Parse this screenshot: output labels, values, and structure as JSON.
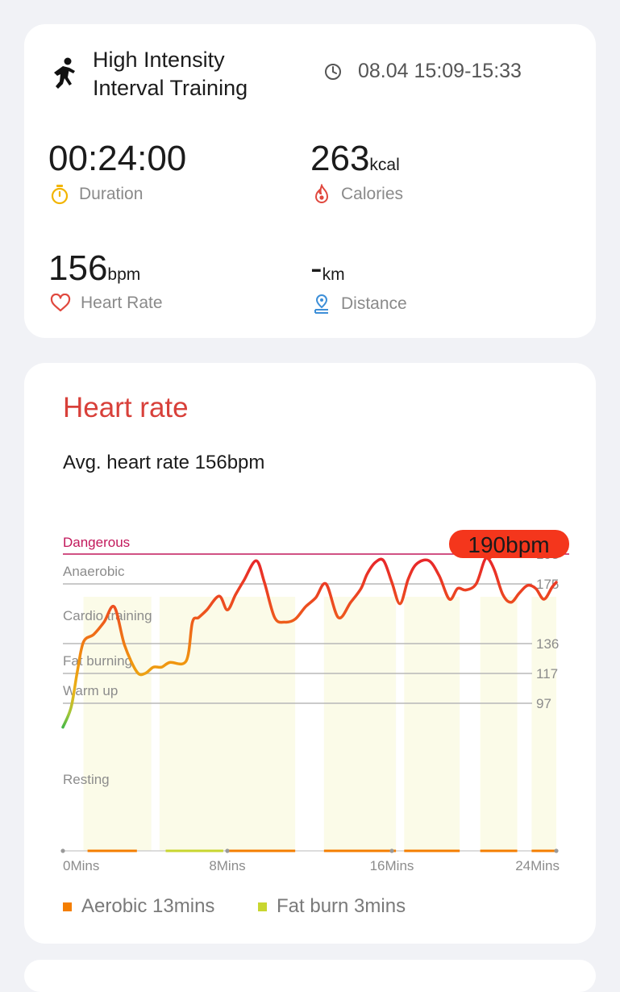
{
  "workout": {
    "title_line1": "High Intensity",
    "title_line2": "Interval Training",
    "time_range": "08.04 15:09-15:33"
  },
  "stats": {
    "duration": {
      "value": "00:24:00",
      "label": "Duration"
    },
    "calories": {
      "value": "263",
      "unit": "kcal",
      "label": "Calories"
    },
    "heart_rate": {
      "value": "156",
      "unit": "bpm",
      "label": "Heart Rate"
    },
    "distance": {
      "value": "-",
      "unit": "km",
      "label": "Distance"
    }
  },
  "icons": {
    "workout": "running-person-icon",
    "time": "clock-icon",
    "duration": "stopwatch-icon",
    "calories": "flame-icon",
    "heart_rate": "heart-icon",
    "distance": "location-pin-icon"
  },
  "colors": {
    "heart_title": "#d8403a",
    "dangerous": "#c2185b",
    "peak_badge": "#f4361c",
    "aerobic": "#f47e00",
    "fat_burn": "#c8d630",
    "zone_band": "#fbfbe8"
  },
  "heart_section": {
    "title": "Heart rate",
    "avg_text": "Avg. heart rate 156bpm",
    "peak_label": "190bpm",
    "legend": [
      {
        "label": "Aerobic 13mins",
        "color": "#f47e00"
      },
      {
        "label": "Fat burn 3mins",
        "color": "#c8d630"
      }
    ]
  },
  "chart_data": {
    "type": "line",
    "x_unit": "mins",
    "x_ticks": [
      "0Mins",
      "8Mins",
      "16Mins",
      "24Mins"
    ],
    "xlim": [
      0,
      24
    ],
    "zones": [
      {
        "name": "Dangerous",
        "threshold": 193
      },
      {
        "name": "Anaerobic",
        "threshold": 175
      },
      {
        "name": "Cardio training",
        "threshold": 136
      },
      {
        "name": "Fat burning",
        "threshold": 117
      },
      {
        "name": "Warm up",
        "threshold": 97
      },
      {
        "name": "Resting",
        "threshold": null
      }
    ],
    "y_ticks": [
      193,
      175,
      136,
      117,
      97
    ],
    "peak": {
      "x": 20.7,
      "y": 190,
      "label": "190bpm"
    },
    "series": [
      {
        "x": [
          0.0,
          0.4,
          0.7,
          1.0,
          1.5,
          2.0,
          2.5,
          3.0,
          3.6,
          4.0,
          4.4,
          4.8,
          5.2,
          6.0,
          6.3,
          6.6,
          7.0,
          7.6,
          8.0,
          8.4,
          8.8,
          9.4,
          9.8,
          10.3,
          10.8,
          11.3,
          11.8,
          12.3,
          12.8,
          13.4,
          14.0,
          14.5,
          14.8,
          15.2,
          15.6,
          16.0,
          16.4,
          16.8,
          17.2,
          17.8,
          18.3,
          18.8,
          19.2,
          19.6,
          20.1,
          20.5,
          20.7,
          21.0,
          21.4,
          21.8,
          22.2,
          22.6,
          23.0,
          23.4,
          23.8,
          24.0
        ],
        "y": [
          91,
          96,
          118,
          137,
          142,
          150,
          160,
          135,
          118,
          117,
          121,
          121,
          124,
          125,
          150,
          153,
          158,
          167,
          158,
          168,
          177,
          189,
          176,
          153,
          150,
          152,
          160,
          166,
          175,
          153,
          163,
          172,
          181,
          188,
          189,
          176,
          162,
          178,
          187,
          189,
          180,
          165,
          172,
          171,
          175,
          189,
          190,
          183,
          168,
          163,
          169,
          174,
          172,
          165,
          173,
          176
        ]
      }
    ],
    "zone_bands_mins": [
      [
        1,
        4.3
      ],
      [
        4.7,
        11.3
      ],
      [
        12.7,
        16.2
      ],
      [
        16.6,
        19.3
      ],
      [
        20.3,
        22.1
      ],
      [
        22.8,
        24.0
      ]
    ],
    "bottom_segments": [
      {
        "range": [
          1.2,
          3.6
        ],
        "zone": "Aerobic"
      },
      {
        "range": [
          5.0,
          7.8
        ],
        "zone": "Fat burn"
      },
      {
        "range": [
          8.0,
          11.3
        ],
        "zone": "Aerobic"
      },
      {
        "range": [
          12.7,
          16.2
        ],
        "zone": "Aerobic"
      },
      {
        "range": [
          16.6,
          19.3
        ],
        "zone": "Aerobic"
      },
      {
        "range": [
          20.3,
          22.1
        ],
        "zone": "Aerobic"
      },
      {
        "range": [
          22.8,
          24.0
        ],
        "zone": "Aerobic"
      }
    ]
  }
}
